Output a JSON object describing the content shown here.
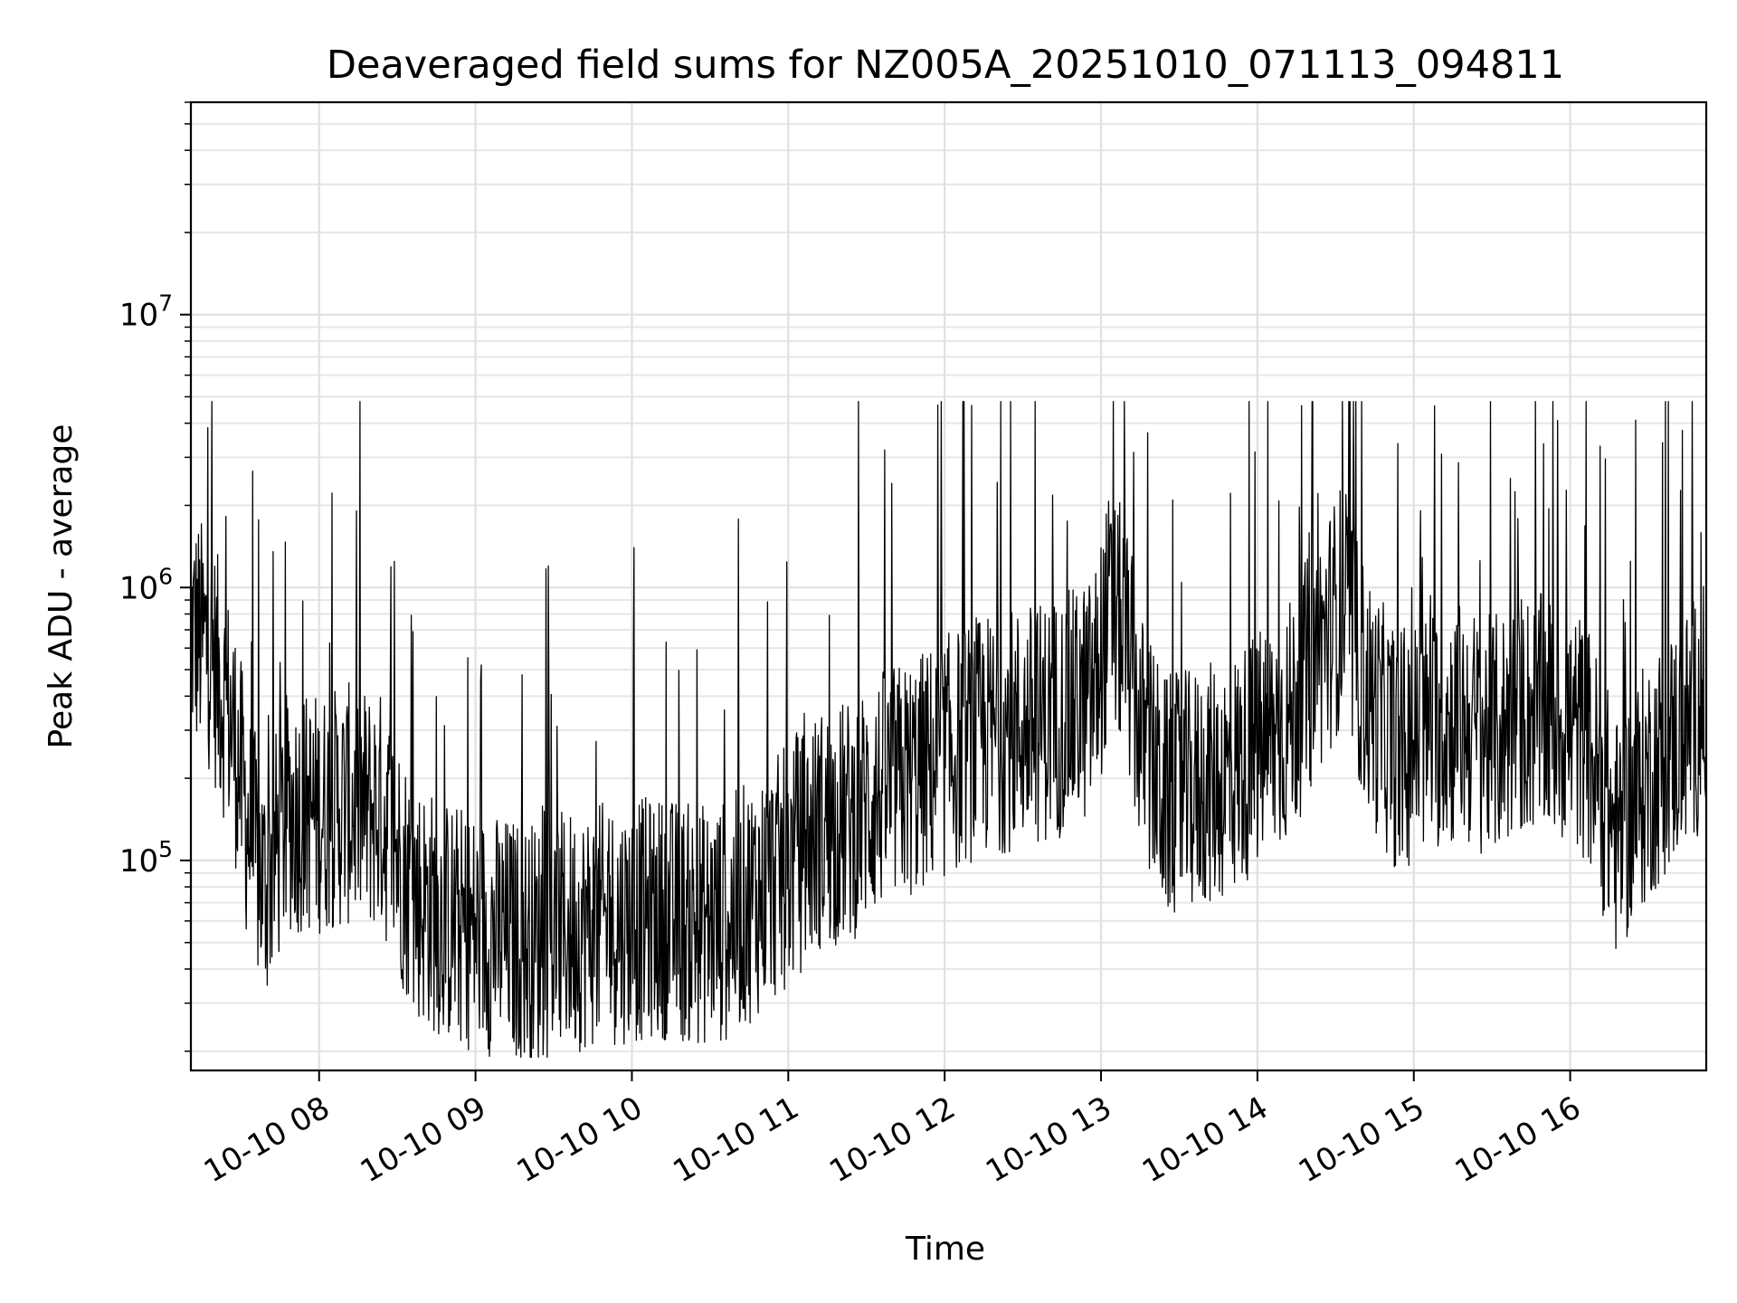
{
  "chart_data": {
    "type": "line",
    "title": "Deaveraged field sums for NZ005A_20251010_071113_094811",
    "xlabel": "Time",
    "ylabel": "Peak ADU - average",
    "yscale": "log",
    "ylim": [
      17000,
      60000000
    ],
    "xlim_hours": [
      7.18,
      16.87
    ],
    "grid": true,
    "legend": "none",
    "x_ticks": [
      {
        "hour": 8,
        "label": "10-10 08"
      },
      {
        "hour": 9,
        "label": "10-10 09"
      },
      {
        "hour": 10,
        "label": "10-10 10"
      },
      {
        "hour": 11,
        "label": "10-10 11"
      },
      {
        "hour": 12,
        "label": "10-10 12"
      },
      {
        "hour": 13,
        "label": "10-10 13"
      },
      {
        "hour": 14,
        "label": "10-10 14"
      },
      {
        "hour": 15,
        "label": "10-10 15"
      },
      {
        "hour": 16,
        "label": "10-10 16"
      }
    ],
    "y_ticks": [
      {
        "value": 100000,
        "base": "10",
        "exp": "5"
      },
      {
        "value": 1000000,
        "base": "10",
        "exp": "6"
      },
      {
        "value": 10000000,
        "base": "10",
        "exp": "7"
      }
    ],
    "series": [
      {
        "name": "Peak ADU - average",
        "color": "#000000",
        "x": [
          7.18,
          7.3,
          7.45,
          7.55,
          7.65,
          7.8,
          8.0,
          8.2,
          8.4,
          8.6,
          8.8,
          9.0,
          9.2,
          9.4,
          9.6,
          9.8,
          10.0,
          10.2,
          10.4,
          10.6,
          10.8,
          11.0,
          11.2,
          11.4,
          11.6,
          11.8,
          12.0,
          12.2,
          12.4,
          12.6,
          12.8,
          12.95,
          13.05,
          13.15,
          13.25,
          13.4,
          13.6,
          13.8,
          14.0,
          14.2,
          14.4,
          14.55,
          14.7,
          14.9,
          15.1,
          15.3,
          15.5,
          15.7,
          15.9,
          16.1,
          16.3,
          16.5,
          16.7,
          16.87
        ],
        "y": [
          700000,
          600000,
          300000,
          130000,
          80000,
          150000,
          150000,
          160000,
          150000,
          75000,
          60000,
          55000,
          52000,
          50000,
          55000,
          58000,
          60000,
          62000,
          58000,
          60000,
          75000,
          95000,
          130000,
          140000,
          180000,
          200000,
          240000,
          280000,
          300000,
          320000,
          350000,
          400000,
          800000,
          700000,
          300000,
          170000,
          180000,
          200000,
          250000,
          320000,
          600000,
          900000,
          400000,
          250000,
          300000,
          320000,
          280000,
          350000,
          330000,
          280000,
          120000,
          200000,
          280000,
          380000
        ]
      }
    ]
  }
}
